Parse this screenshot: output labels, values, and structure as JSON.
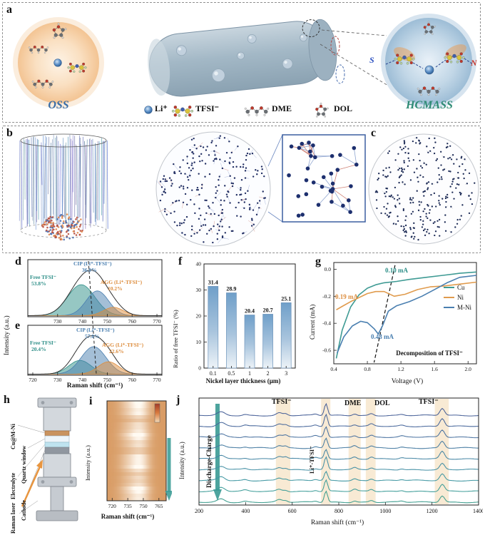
{
  "panels": {
    "a": {
      "label": "a",
      "oss": "OSS",
      "hcmass": "HCMASS",
      "s": "S",
      "n": "N",
      "colors": {
        "oss": "#3a6ea8",
        "hcmass": "#2e8b74",
        "s": "#2a4fc0",
        "n": "#c8372d"
      },
      "legend": {
        "li": "Li⁺",
        "tfsi": "TFSI⁻",
        "dme": "DME",
        "dol": "DOL"
      }
    },
    "b": {
      "label": "b"
    },
    "c": {
      "label": "c"
    },
    "d": {
      "label": "d"
    },
    "e": {
      "label": "e"
    },
    "f": {
      "label": "f"
    },
    "g": {
      "label": "g"
    },
    "h": {
      "label": "h",
      "labels": [
        "Cu@M-Ni",
        "Quartz window",
        "Electrolyte",
        "Cathode",
        "Raman laser"
      ]
    },
    "i": {
      "label": "i"
    },
    "j": {
      "label": "j"
    }
  },
  "chart_data": [
    {
      "panel": "d",
      "type": "area",
      "xlabel": "Raman shift (cm⁻¹)",
      "ylabel": "Intensity (a.u.)",
      "xlim": [
        718,
        772
      ],
      "xticks": [
        730,
        740,
        750,
        760,
        770
      ],
      "components": [
        {
          "label": "Free TFSI⁻",
          "pct_label": "53.8%",
          "share_pct": 53.8,
          "center": 739.5,
          "width": 5.5,
          "amplitude": 1.0,
          "color": "#2e8f88"
        },
        {
          "label": "CIP (Li⁺-TFSI⁻)",
          "pct_label": "36.0%",
          "share_pct": 36.0,
          "center": 746.0,
          "width": 4.5,
          "amplitude": 0.8,
          "color": "#4a7fb0"
        },
        {
          "label": "AGG (Li⁺-TFSI⁻)",
          "pct_label": "10.2%",
          "share_pct": 10.2,
          "center": 752.5,
          "width": 4.0,
          "amplitude": 0.27,
          "color": "#dd8d3e"
        }
      ]
    },
    {
      "panel": "e",
      "type": "area",
      "xlabel": "Raman shift (cm⁻¹)",
      "ylabel": "Intensity (a.u.)",
      "xlim": [
        718,
        772
      ],
      "xticks": [
        720,
        730,
        740,
        750,
        760,
        770
      ],
      "components": [
        {
          "label": "Free TFSI⁻",
          "pct_label": "20.4%",
          "share_pct": 20.4,
          "center": 739.0,
          "width": 4.5,
          "amplitude": 0.5,
          "color": "#2e8f88"
        },
        {
          "label": "CIP (Li⁺-TFSI⁻)",
          "pct_label": "57.0%",
          "share_pct": 57.0,
          "center": 744.5,
          "width": 5.0,
          "amplitude": 1.0,
          "color": "#4a7fb0"
        },
        {
          "label": "AGG (Li⁺-TFSI⁻)",
          "pct_label": "22.6%",
          "share_pct": 22.6,
          "center": 750.5,
          "width": 4.2,
          "amplitude": 0.45,
          "color": "#dd8d3e"
        }
      ]
    },
    {
      "panel": "f",
      "type": "bar",
      "categories": [
        "0.1",
        "0.5",
        "1",
        "2",
        "3"
      ],
      "values": [
        31.4,
        28.9,
        20.4,
        20.7,
        25.1
      ],
      "value_labels": [
        "31.4",
        "28.9",
        "20.4",
        "20.7",
        "25.1"
      ],
      "xlabel": "Nickel layer thickness (μm)",
      "ylabel": "Ratio of free TFSI⁻ (%)",
      "ylim": [
        0,
        40
      ],
      "yticks": [
        0,
        10,
        20,
        30,
        40
      ],
      "bar_color_top": "#6f9fc9",
      "bar_color_bottom": "#edf3f8"
    },
    {
      "panel": "g",
      "type": "line",
      "xlabel": "Voltage (V)",
      "ylabel": "Current (mA)",
      "xlim": [
        0.4,
        2.1
      ],
      "ylim": [
        -0.7,
        0.05
      ],
      "xticks": [
        0.4,
        0.8,
        1.2,
        1.6,
        2.0
      ],
      "yticks": [
        0.0,
        -0.2,
        -0.4,
        -0.6
      ],
      "series": [
        {
          "name": "Cu",
          "color": "#3f9b94",
          "points": [
            [
              2.1,
              -0.02
            ],
            [
              1.9,
              -0.03
            ],
            [
              1.7,
              -0.045
            ],
            [
              1.5,
              -0.06
            ],
            [
              1.3,
              -0.075
            ],
            [
              1.15,
              -0.09
            ],
            [
              1.0,
              -0.1
            ],
            [
              0.9,
              -0.115
            ],
            [
              0.8,
              -0.14
            ],
            [
              0.7,
              -0.19
            ],
            [
              0.6,
              -0.28
            ],
            [
              0.5,
              -0.45
            ],
            [
              0.43,
              -0.66
            ]
          ]
        },
        {
          "name": "Ni",
          "color": "#e09b4d",
          "points": [
            [
              2.1,
              -0.095
            ],
            [
              1.9,
              -0.11
            ],
            [
              1.7,
              -0.125
            ],
            [
              1.55,
              -0.13
            ],
            [
              1.4,
              -0.15
            ],
            [
              1.25,
              -0.185
            ],
            [
              1.12,
              -0.2
            ],
            [
              1.0,
              -0.165
            ],
            [
              0.9,
              -0.165
            ],
            [
              0.8,
              -0.18
            ],
            [
              0.7,
              -0.21
            ],
            [
              0.6,
              -0.24
            ],
            [
              0.5,
              -0.275
            ],
            [
              0.43,
              -0.3
            ]
          ]
        },
        {
          "name": "M-Ni",
          "color": "#4a7fb0",
          "points": [
            [
              2.1,
              -0.045
            ],
            [
              1.9,
              -0.06
            ],
            [
              1.75,
              -0.1
            ],
            [
              1.6,
              -0.15
            ],
            [
              1.45,
              -0.2
            ],
            [
              1.3,
              -0.24
            ],
            [
              1.15,
              -0.27
            ],
            [
              1.05,
              -0.31
            ],
            [
              0.98,
              -0.42
            ],
            [
              0.93,
              -0.48
            ],
            [
              0.88,
              -0.44
            ],
            [
              0.8,
              -0.395
            ],
            [
              0.72,
              -0.385
            ],
            [
              0.62,
              -0.42
            ],
            [
              0.52,
              -0.5
            ],
            [
              0.44,
              -0.62
            ]
          ]
        }
      ],
      "annotations": [
        {
          "text": "0.10 mA",
          "color": "#2e8f88"
        },
        {
          "text": "0.19 mA",
          "color": "#dd8d3e"
        },
        {
          "text": "0.48 mA",
          "color": "#4a7fb0"
        },
        {
          "text": "Decomposition of TFSI⁻",
          "color": "#111111"
        }
      ],
      "dashed_line": [
        [
          1.13,
          0.03
        ],
        [
          0.88,
          -0.69
        ]
      ]
    },
    {
      "panel": "i",
      "type": "heatmap",
      "xlabel": "Raman shift (cm⁻¹)",
      "ylabel": "Intensity (a.u.)",
      "xlim": [
        715,
        772
      ],
      "xticks": [
        720,
        735,
        750,
        765
      ],
      "band_center": 746,
      "band_width": 7,
      "secondary_band_center": 733,
      "secondary_band_width": 6,
      "arrow_color": "#3e9d97"
    },
    {
      "panel": "j",
      "type": "line",
      "xlabel": "Raman shift (cm⁻¹)",
      "ylabel": "Intensity (a.u.)",
      "xlim": [
        200,
        1400
      ],
      "xticks": [
        200,
        400,
        600,
        800,
        1000,
        1200,
        1400
      ],
      "n_traces": 9,
      "trace_colors": [
        "#3f9e8f",
        "#3f9d99",
        "#4197a2",
        "#4590a5",
        "#4787a5",
        "#497da3",
        "#4a72a0",
        "#49689c",
        "#486098"
      ],
      "peaks": [
        {
          "center": 295,
          "width": 16,
          "amp": 5
        },
        {
          "center": 398,
          "width": 10,
          "amp": 1.5
        },
        {
          "center": 545,
          "width": 12,
          "amp": 3.2
        },
        {
          "center": 572,
          "width": 8,
          "amp": 2.2
        },
        {
          "center": 700,
          "width": 9,
          "amp": 1.6
        },
        {
          "center": 745,
          "width": 7,
          "amp": 15
        },
        {
          "center": 868,
          "width": 9,
          "amp": 2.6
        },
        {
          "center": 940,
          "width": 9,
          "amp": 2.6
        },
        {
          "center": 1070,
          "width": 10,
          "amp": 1.3
        },
        {
          "center": 1244,
          "width": 10,
          "amp": 10
        }
      ],
      "highlight_bands": [
        [
          530,
          592
        ],
        [
          724,
          764
        ],
        [
          842,
          894
        ],
        [
          916,
          958
        ],
        [
          1212,
          1272
        ]
      ],
      "annotations": [
        "TFSI⁻",
        "Li⁺-TFSI⁻",
        "DME",
        "DOL",
        "TFSI⁻"
      ],
      "arrow_label": "Discharge-Charge",
      "arrow_color": "#3a9a94"
    }
  ]
}
